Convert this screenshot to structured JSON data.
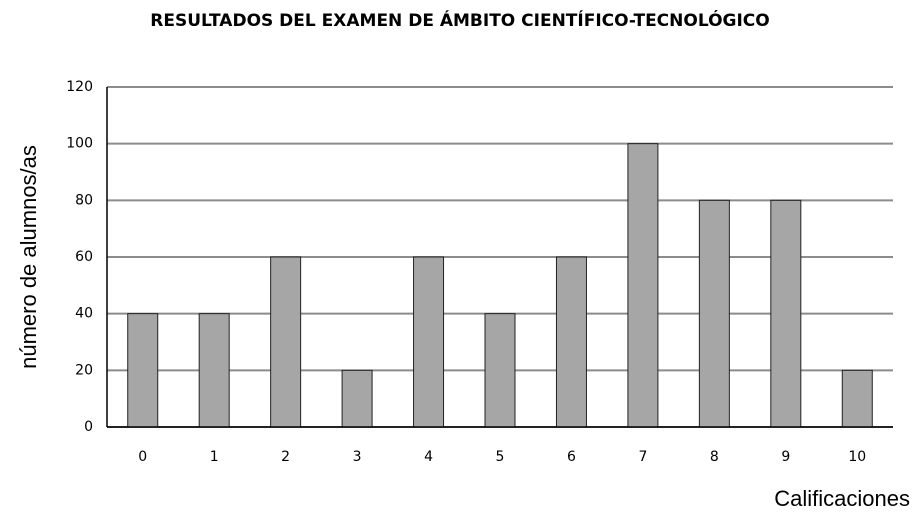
{
  "chart_data": {
    "type": "bar",
    "title": "RESULTADOS DEL EXAMEN DE ÁMBITO CIENTÍFICO-TECNOLÓGICO",
    "x_label": "Calificaciones",
    "y_label": "número de alumnos/as",
    "categories": [
      "0",
      "1",
      "2",
      "3",
      "4",
      "5",
      "6",
      "7",
      "8",
      "9",
      "10"
    ],
    "values": [
      40,
      40,
      60,
      20,
      60,
      40,
      60,
      100,
      80,
      80,
      20
    ],
    "color": "#a6a6a6",
    "ylim": [
      0,
      120
    ],
    "yticks": [
      0,
      20,
      40,
      60,
      80,
      100,
      120
    ],
    "grid": true
  }
}
